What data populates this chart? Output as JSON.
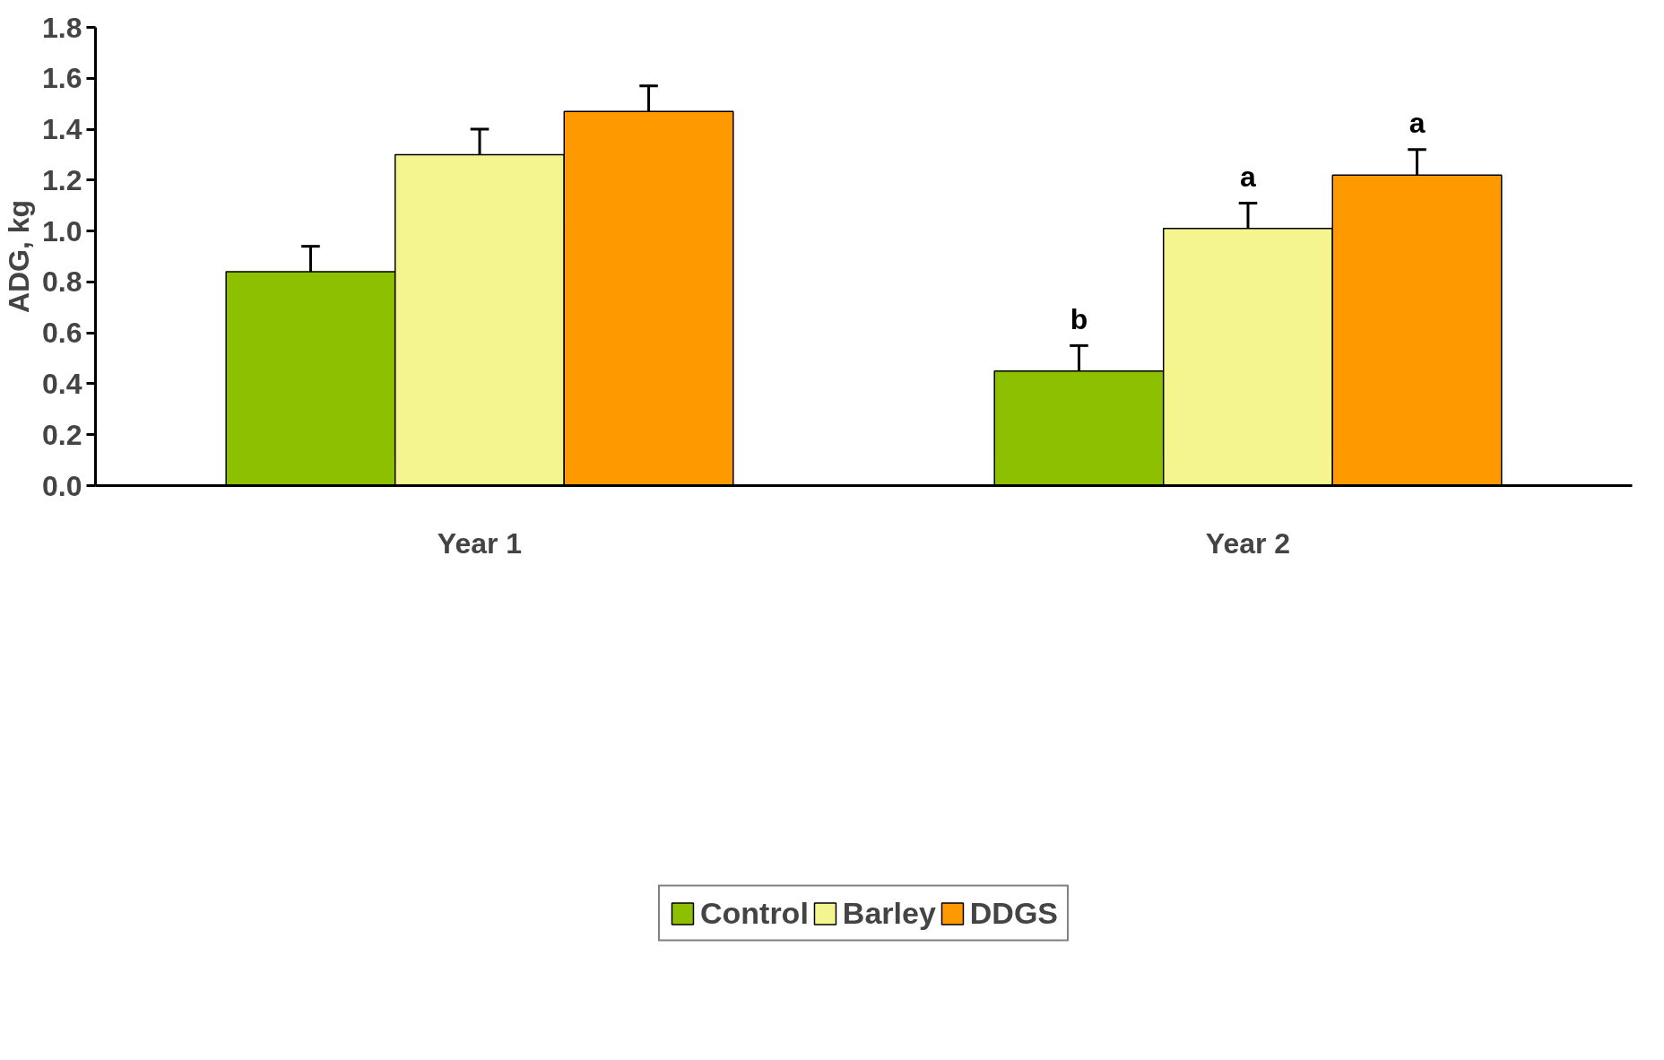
{
  "chart_data": {
    "type": "bar",
    "ylabel": "ADG, kg",
    "categories": [
      "Year 1",
      "Year 2"
    ],
    "series": [
      {
        "name": "Control",
        "color": "#8cc000",
        "values": [
          0.84,
          0.45
        ],
        "errors": [
          0.1,
          0.1
        ],
        "value_labels": [
          null,
          "b"
        ]
      },
      {
        "name": "Barley",
        "color": "#f5f590",
        "values": [
          1.3,
          1.01
        ],
        "errors": [
          0.1,
          0.1
        ],
        "value_labels": [
          null,
          "a"
        ]
      },
      {
        "name": "DDGS",
        "color": "#ff9900",
        "values": [
          1.47,
          1.22
        ],
        "errors": [
          0.1,
          0.1
        ],
        "value_labels": [
          null,
          "a"
        ]
      }
    ],
    "ylim": [
      0,
      1.8
    ],
    "yticks": [
      {
        "value": 0,
        "label": "0.0"
      },
      0.2,
      0.4,
      0.6,
      0.8,
      {
        "value": 1,
        "label": "1.0"
      },
      1.2,
      1.4,
      1.6,
      1.8
    ],
    "grid": false,
    "legend": "bottom"
  }
}
